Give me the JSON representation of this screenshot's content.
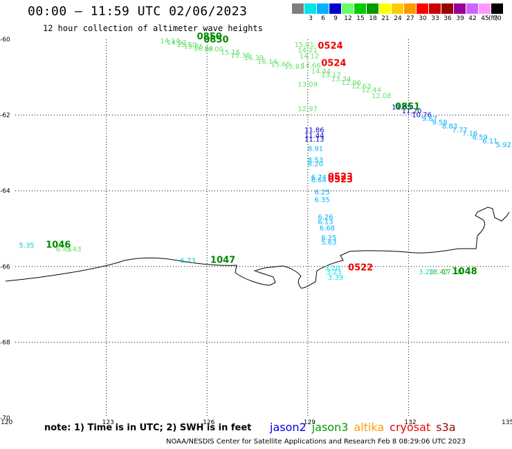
{
  "header": {
    "title": "00:00 – 11:59 UTC 02/06/2023",
    "subtitle": "12 hour collection of altimeter wave heights"
  },
  "colorbar": {
    "colors": [
      "#7f7f7f",
      "#00e5e5",
      "#00b2ff",
      "#0000cc",
      "#66ff66",
      "#00cc00",
      "#009900",
      "#ffff00",
      "#ffcc00",
      "#ff9900",
      "#ff0000",
      "#cc0000",
      "#990000",
      "#990099",
      "#cc66ff",
      "#ff99ff",
      "#000000"
    ],
    "labels": [
      "3",
      "6",
      "9",
      "12",
      "15",
      "18",
      "21",
      "24",
      "27",
      "30",
      "33",
      "36",
      "39",
      "42",
      "45",
      "70",
      "(ft)"
    ]
  },
  "axes": {
    "lon_ticks": [
      "120",
      "123",
      "126",
      "129",
      "132",
      "135"
    ],
    "lat_ticks": [
      "-60",
      "-62",
      "-64",
      "-66",
      "-68",
      "-70"
    ]
  },
  "observations": [
    {
      "text": "14.14",
      "lon": 124.6,
      "lat": -60.1,
      "color": "#66dd66"
    },
    {
      "text": "14.93",
      "lon": 124.8,
      "lat": -60.15,
      "color": "#66dd66"
    },
    {
      "text": "15.50",
      "lon": 125.1,
      "lat": -60.2,
      "color": "#66dd66"
    },
    {
      "text": "15.85",
      "lon": 125.3,
      "lat": -60.25,
      "color": "#66dd66"
    },
    {
      "text": "16.44",
      "lon": 125.6,
      "lat": -60.3,
      "color": "#66dd66"
    },
    {
      "text": "16.00",
      "lon": 125.9,
      "lat": -60.32,
      "color": "#66dd66"
    },
    {
      "text": "15.15",
      "lon": 126.4,
      "lat": -60.4,
      "color": "#66dd66"
    },
    {
      "text": "15.38",
      "lon": 126.7,
      "lat": -60.48,
      "color": "#66dd66"
    },
    {
      "text": "16.39",
      "lon": 127.1,
      "lat": -60.55,
      "color": "#66dd66"
    },
    {
      "text": "16.14",
      "lon": 127.5,
      "lat": -60.65,
      "color": "#66dd66"
    },
    {
      "text": "15.65",
      "lon": 127.9,
      "lat": -60.72,
      "color": "#66dd66"
    },
    {
      "text": "15.81",
      "lon": 128.3,
      "lat": -60.78,
      "color": "#66dd66"
    },
    {
      "text": "15.01",
      "lon": 128.6,
      "lat": -60.2,
      "color": "#66dd66"
    },
    {
      "text": "14.21",
      "lon": 128.7,
      "lat": -60.35,
      "color": "#66dd66"
    },
    {
      "text": "14.12",
      "lon": 128.75,
      "lat": -60.5,
      "color": "#66dd66"
    },
    {
      "text": "14.66",
      "lon": 128.8,
      "lat": -60.75,
      "color": "#66dd66"
    },
    {
      "text": "14.44",
      "lon": 129.1,
      "lat": -60.9,
      "color": "#66dd66"
    },
    {
      "text": "13.17",
      "lon": 129.4,
      "lat": -61.0,
      "color": "#66dd66"
    },
    {
      "text": "13.34",
      "lon": 129.7,
      "lat": -61.1,
      "color": "#66dd66"
    },
    {
      "text": "12.96",
      "lon": 130.0,
      "lat": -61.2,
      "color": "#66dd66"
    },
    {
      "text": "12.63",
      "lon": 130.3,
      "lat": -61.3,
      "color": "#66dd66"
    },
    {
      "text": "12.44",
      "lon": 130.6,
      "lat": -61.4,
      "color": "#66dd66"
    },
    {
      "text": "12.08",
      "lon": 130.9,
      "lat": -61.55,
      "color": "#66dd66"
    },
    {
      "text": "13.09",
      "lon": 128.7,
      "lat": -61.25,
      "color": "#66dd66"
    },
    {
      "text": "12.97",
      "lon": 128.7,
      "lat": -61.9,
      "color": "#66dd66"
    },
    {
      "text": "11.85",
      "lon": 131.5,
      "lat": -61.85,
      "color": "#0000cc"
    },
    {
      "text": "11.20",
      "lon": 131.8,
      "lat": -61.95,
      "color": "#0000cc"
    },
    {
      "text": "10.76",
      "lon": 132.1,
      "lat": -62.05,
      "color": "#0000cc"
    },
    {
      "text": "9.87",
      "lon": 132.4,
      "lat": -62.15,
      "color": "#00b2ff"
    },
    {
      "text": "9.58",
      "lon": 132.7,
      "lat": -62.25,
      "color": "#00b2ff"
    },
    {
      "text": "8.83",
      "lon": 133.0,
      "lat": -62.35,
      "color": "#00b2ff"
    },
    {
      "text": "7.77",
      "lon": 133.3,
      "lat": -62.45,
      "color": "#00b2ff"
    },
    {
      "text": "7.16",
      "lon": 133.6,
      "lat": -62.55,
      "color": "#00b2ff"
    },
    {
      "text": "6.59",
      "lon": 133.9,
      "lat": -62.65,
      "color": "#00b2ff"
    },
    {
      "text": "6.11",
      "lon": 134.2,
      "lat": -62.75,
      "color": "#00b2ff"
    },
    {
      "text": "5.92",
      "lon": 134.6,
      "lat": -62.85,
      "color": "#00b2ff"
    },
    {
      "text": "11.86",
      "lon": 128.9,
      "lat": -62.45,
      "color": "#0000cc"
    },
    {
      "text": "11.44",
      "lon": 128.9,
      "lat": -62.6,
      "color": "#0000cc"
    },
    {
      "text": "11.13",
      "lon": 128.9,
      "lat": -62.7,
      "color": "#0000cc"
    },
    {
      "text": "8.91",
      "lon": 129.0,
      "lat": -62.95,
      "color": "#00b2ff"
    },
    {
      "text": "8.53",
      "lon": 129.0,
      "lat": -63.25,
      "color": "#00b2ff"
    },
    {
      "text": "8.20",
      "lon": 129.0,
      "lat": -63.35,
      "color": "#00b2ff"
    },
    {
      "text": "6.74",
      "lon": 129.1,
      "lat": -63.7,
      "color": "#00b2ff"
    },
    {
      "text": "6.64",
      "lon": 129.1,
      "lat": -63.78,
      "color": "#00b2ff"
    },
    {
      "text": "6.25",
      "lon": 129.2,
      "lat": -64.1,
      "color": "#00b2ff"
    },
    {
      "text": "6.35",
      "lon": 129.2,
      "lat": -64.3,
      "color": "#00b2ff"
    },
    {
      "text": "6.26",
      "lon": 129.3,
      "lat": -64.75,
      "color": "#00b2ff"
    },
    {
      "text": "6.13",
      "lon": 129.3,
      "lat": -64.88,
      "color": "#00b2ff"
    },
    {
      "text": "6.68",
      "lon": 129.35,
      "lat": -65.05,
      "color": "#00b2ff"
    },
    {
      "text": "6.25",
      "lon": 129.4,
      "lat": -65.3,
      "color": "#00b2ff"
    },
    {
      "text": "5.63",
      "lon": 129.4,
      "lat": -65.42,
      "color": "#00b2ff"
    },
    {
      "text": "5.35",
      "lon": 120.4,
      "lat": -65.5,
      "color": "#00cccc"
    },
    {
      "text": "6.43",
      "lon": 121.5,
      "lat": -65.6,
      "color": "#66dd66"
    },
    {
      "text": "5.43",
      "lon": 121.8,
      "lat": -65.6,
      "color": "#66dd66"
    },
    {
      "text": "6.73",
      "lon": 125.2,
      "lat": -65.9,
      "color": "#00cccc"
    },
    {
      "text": "3.20",
      "lon": 129.5,
      "lat": -66.1,
      "color": "#00e5e5"
    },
    {
      "text": "3.23",
      "lon": 129.55,
      "lat": -66.2,
      "color": "#00e5e5"
    },
    {
      "text": "3.39",
      "lon": 129.6,
      "lat": -66.35,
      "color": "#00e5e5"
    },
    {
      "text": "3.23",
      "lon": 132.3,
      "lat": -66.2,
      "color": "#00e5e5"
    },
    {
      "text": "18.47",
      "lon": 132.6,
      "lat": -66.2,
      "color": "#33bb33"
    },
    {
      "text": "17.18",
      "lon": 133.0,
      "lat": -66.2,
      "color": "#33bb33"
    }
  ],
  "passes": [
    {
      "text": "0850",
      "lon": 125.7,
      "lat": -60.0,
      "color": "#008800"
    },
    {
      "text": "0850",
      "lon": 125.9,
      "lat": -60.08,
      "color": "#008800"
    },
    {
      "text": "0524",
      "lon": 129.3,
      "lat": -60.25,
      "color": "#ee0000"
    },
    {
      "text": "0524",
      "lon": 129.4,
      "lat": -60.7,
      "color": "#ee0000"
    },
    {
      "text": "0851",
      "lon": 131.6,
      "lat": -61.85,
      "color": "#008800"
    },
    {
      "text": "0523",
      "lon": 129.6,
      "lat": -63.7,
      "color": "#ee0000"
    },
    {
      "text": "0523",
      "lon": 129.6,
      "lat": -63.78,
      "color": "#ee0000"
    },
    {
      "text": "1046",
      "lon": 121.2,
      "lat": -65.5,
      "color": "#008800"
    },
    {
      "text": "1047",
      "lon": 126.1,
      "lat": -65.9,
      "color": "#008800"
    },
    {
      "text": "0522",
      "lon": 130.2,
      "lat": -66.1,
      "color": "#ee0000"
    },
    {
      "text": "1048",
      "lon": 133.3,
      "lat": -66.2,
      "color": "#008800"
    }
  ],
  "footer": {
    "note": "note: 1) Time is in UTC; 2) SWH is in feet",
    "credit": "NOAA/NESDIS Center for Satellite Applications and Research   Feb  8 08:29:06 UTC 2023"
  },
  "satellites": [
    {
      "name": "jason2",
      "color": "#0000ee"
    },
    {
      "name": "jason3",
      "color": "#009900"
    },
    {
      "name": "altika",
      "color": "#ff9900"
    },
    {
      "name": "cryosat",
      "color": "#ee0000"
    },
    {
      "name": "s3a",
      "color": "#990000"
    }
  ]
}
